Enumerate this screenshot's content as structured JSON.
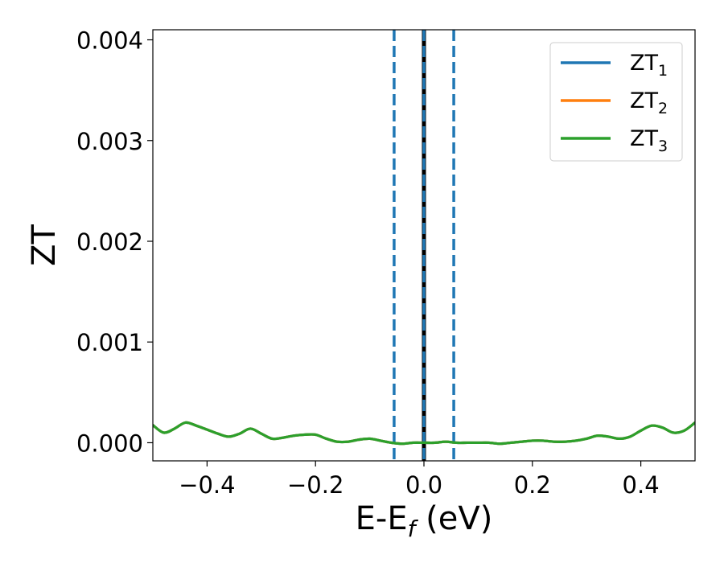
{
  "chart_data": {
    "type": "line",
    "xlabel": {
      "main": "E-E",
      "sub": "f",
      "suffix": " (eV)"
    },
    "ylabel": "ZT",
    "xlim": [
      -0.5,
      0.5
    ],
    "ylim": [
      -0.00018,
      0.0041
    ],
    "xticks": [
      -0.4,
      -0.2,
      0.0,
      0.2,
      0.4
    ],
    "xtick_labels": [
      "−0.4",
      "−0.2",
      "0.0",
      "0.2",
      "0.4"
    ],
    "yticks": [
      0.0,
      0.001,
      0.002,
      0.003,
      0.004
    ],
    "ytick_labels": [
      "0.000",
      "0.001",
      "0.002",
      "0.003",
      "0.004"
    ],
    "grid": false,
    "legend_position": "top-right",
    "vertical_lines": [
      {
        "x": -0.055,
        "style": "dashed",
        "color": "#1f77b4"
      },
      {
        "x": 0.055,
        "style": "dashed",
        "color": "#1f77b4"
      },
      {
        "x": 0.0,
        "style": "solid",
        "color": "#000000"
      },
      {
        "x": 0.0,
        "style": "dashed",
        "color": "#1f77b4"
      }
    ],
    "x": [
      -0.5,
      -0.48,
      -0.46,
      -0.44,
      -0.42,
      -0.4,
      -0.38,
      -0.36,
      -0.34,
      -0.32,
      -0.3,
      -0.28,
      -0.26,
      -0.24,
      -0.22,
      -0.2,
      -0.18,
      -0.16,
      -0.14,
      -0.12,
      -0.1,
      -0.08,
      -0.06,
      -0.04,
      -0.02,
      0.0,
      0.02,
      0.04,
      0.06,
      0.08,
      0.1,
      0.12,
      0.14,
      0.16,
      0.18,
      0.2,
      0.22,
      0.24,
      0.26,
      0.28,
      0.3,
      0.32,
      0.34,
      0.36,
      0.38,
      0.4,
      0.42,
      0.44,
      0.46,
      0.48,
      0.5
    ],
    "series": [
      {
        "name": "ZT",
        "sub": "1",
        "color": "#1f77b4",
        "values": [
          0.000175,
          0.0001,
          0.00014,
          0.0002,
          0.00017,
          0.00013,
          9e-05,
          6e-05,
          9e-05,
          0.00014,
          9e-05,
          4e-05,
          5e-05,
          7e-05,
          8e-05,
          8e-05,
          4e-05,
          1e-05,
          1e-05,
          3e-05,
          4e-05,
          2e-05,
          0.0,
          -1e-05,
          0.0,
          0.0,
          0.0,
          1e-05,
          0.0,
          0.0,
          0.0,
          0.0,
          -1e-05,
          0.0,
          1e-05,
          2e-05,
          2e-05,
          1e-05,
          1e-05,
          2e-05,
          4e-05,
          7e-05,
          6e-05,
          4e-05,
          6e-05,
          0.00012,
          0.00017,
          0.00015,
          0.0001,
          0.00012,
          0.0002
        ]
      },
      {
        "name": "ZT",
        "sub": "2",
        "color": "#ff7f0e",
        "values": [
          0.000175,
          0.0001,
          0.00014,
          0.0002,
          0.00017,
          0.00013,
          9e-05,
          6e-05,
          9e-05,
          0.00014,
          9e-05,
          4e-05,
          5e-05,
          7e-05,
          8e-05,
          8e-05,
          4e-05,
          1e-05,
          1e-05,
          3e-05,
          4e-05,
          2e-05,
          0.0,
          -1e-05,
          0.0,
          0.0,
          0.0,
          1e-05,
          0.0,
          0.0,
          0.0,
          0.0,
          -1e-05,
          0.0,
          1e-05,
          2e-05,
          2e-05,
          1e-05,
          1e-05,
          2e-05,
          4e-05,
          7e-05,
          6e-05,
          4e-05,
          6e-05,
          0.00012,
          0.00017,
          0.00015,
          0.0001,
          0.00012,
          0.0002
        ]
      },
      {
        "name": "ZT",
        "sub": "3",
        "color": "#2ca02c",
        "values": [
          0.000175,
          0.0001,
          0.00014,
          0.0002,
          0.00017,
          0.00013,
          9e-05,
          6e-05,
          9e-05,
          0.00014,
          9e-05,
          4e-05,
          5e-05,
          7e-05,
          8e-05,
          8e-05,
          4e-05,
          1e-05,
          1e-05,
          3e-05,
          4e-05,
          2e-05,
          0.0,
          -1e-05,
          0.0,
          0.0,
          0.0,
          1e-05,
          0.0,
          0.0,
          0.0,
          0.0,
          -1e-05,
          0.0,
          1e-05,
          2e-05,
          2e-05,
          1e-05,
          1e-05,
          2e-05,
          4e-05,
          7e-05,
          6e-05,
          4e-05,
          6e-05,
          0.00012,
          0.00017,
          0.00015,
          0.0001,
          0.00012,
          0.0002
        ]
      }
    ]
  }
}
